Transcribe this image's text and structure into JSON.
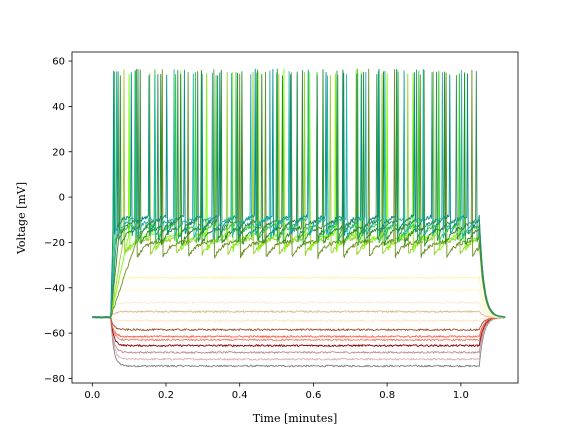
{
  "chart_data": {
    "type": "line",
    "xlabel": "Time [minutes]",
    "ylabel": "Voltage [mV]",
    "xlim": [
      -0.055,
      1.155
    ],
    "ylim": [
      -82,
      64
    ],
    "xticks": [
      0.0,
      0.2,
      0.4,
      0.6,
      0.8,
      1.0
    ],
    "xtick_labels": [
      "0.0",
      "0.2",
      "0.4",
      "0.6",
      "0.8",
      "1.0"
    ],
    "yticks": [
      -80,
      -60,
      -40,
      -20,
      0,
      20,
      40,
      60
    ],
    "ytick_labels": [
      "−80",
      "−60",
      "−40",
      "−20",
      "0",
      "20",
      "40",
      "60"
    ],
    "stim_on": 0.05,
    "stim_off": 1.05,
    "t_end": 1.1,
    "rest": -53,
    "spike_peak": 55,
    "grid": false,
    "legend": "none",
    "series": [
      {
        "color": "#808080",
        "steady": -74.5,
        "spiking": false
      },
      {
        "color": "#d8b0b8",
        "steady": -71.5,
        "spiking": false
      },
      {
        "color": "#bc8f8f",
        "steady": -68.5,
        "spiking": false
      },
      {
        "color": "#8b0000",
        "steady": -65.5,
        "spiking": false
      },
      {
        "color": "#f08070",
        "steady": -63.0,
        "spiking": false
      },
      {
        "color": "#ff6347",
        "steady": -61.5,
        "spiking": false
      },
      {
        "color": "#a0522d",
        "steady": -58.5,
        "spiking": false
      },
      {
        "color": "#ffe4c4",
        "steady": -54.5,
        "spiking": false
      },
      {
        "color": "#deb887",
        "steady": -50.5,
        "spiking": false
      },
      {
        "color": "#faebd7",
        "steady": -46.5,
        "spiking": false
      },
      {
        "color": "#fffacd",
        "steady": -41.0,
        "spiking": false
      },
      {
        "color": "#fff3a8",
        "steady": -35.5,
        "spiking": false
      },
      {
        "color": "#9acd32",
        "spiking": true,
        "trough": -26,
        "plateau": -18,
        "spikes": [
          0.085,
          0.155,
          0.225,
          0.295,
          0.365,
          0.435,
          0.505,
          0.575,
          0.645,
          0.715,
          0.785,
          0.855,
          0.925,
          0.995
        ]
      },
      {
        "color": "#7cfc00",
        "spiking": true,
        "trough": -24,
        "plateau": -16,
        "spikes": [
          0.1,
          0.17,
          0.24,
          0.31,
          0.38,
          0.45,
          0.52,
          0.59,
          0.66,
          0.73,
          0.8,
          0.87,
          0.94,
          1.01
        ]
      },
      {
        "color": "#6b8e23",
        "spiking": true,
        "trough": -27,
        "plateau": -19,
        "spikes": [
          0.12,
          0.19,
          0.26,
          0.33,
          0.4,
          0.47,
          0.54,
          0.61,
          0.68,
          0.75,
          0.82,
          0.89,
          0.96,
          1.03
        ]
      },
      {
        "color": "#32cd32",
        "spiking": true,
        "trough": -21,
        "plateau": -12,
        "spikes": [
          0.06,
          0.115,
          0.17,
          0.225,
          0.28,
          0.335,
          0.39,
          0.445,
          0.5,
          0.555,
          0.61,
          0.665,
          0.72,
          0.775,
          0.83,
          0.885,
          0.94,
          0.995
        ]
      },
      {
        "color": "#228b22",
        "spiking": true,
        "trough": -22,
        "plateau": -13,
        "spikes": [
          0.075,
          0.13,
          0.185,
          0.24,
          0.295,
          0.35,
          0.405,
          0.46,
          0.515,
          0.57,
          0.625,
          0.68,
          0.735,
          0.79,
          0.845,
          0.9,
          0.955,
          1.01
        ]
      },
      {
        "color": "#008b8b",
        "spiking": true,
        "trough": -18,
        "plateau": -8,
        "spikes": [
          0.057,
          0.105,
          0.153,
          0.201,
          0.249,
          0.297,
          0.345,
          0.393,
          0.441,
          0.489,
          0.537,
          0.585,
          0.633,
          0.681,
          0.729,
          0.777,
          0.825,
          0.873,
          0.921,
          0.969,
          1.017
        ]
      },
      {
        "color": "#20b2aa",
        "spiking": true,
        "trough": -19,
        "plateau": -9,
        "spikes": [
          0.065,
          0.117,
          0.169,
          0.221,
          0.273,
          0.325,
          0.377,
          0.429,
          0.481,
          0.533,
          0.585,
          0.637,
          0.689,
          0.741,
          0.793,
          0.845,
          0.897,
          0.949,
          1.001
        ]
      },
      {
        "color": "#2e8b57",
        "spiking": true,
        "trough": -20,
        "plateau": -10,
        "spikes": [
          0.07,
          0.124,
          0.178,
          0.232,
          0.286,
          0.34,
          0.394,
          0.448,
          0.502,
          0.556,
          0.61,
          0.664,
          0.718,
          0.772,
          0.826,
          0.88,
          0.934,
          0.988,
          1.042
        ]
      }
    ]
  }
}
